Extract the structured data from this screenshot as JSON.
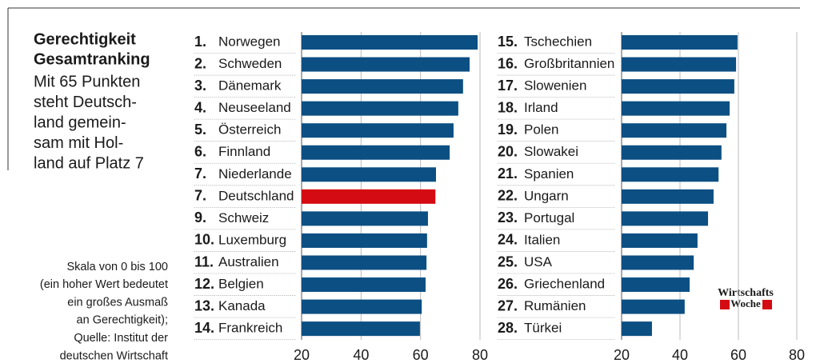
{
  "header": {
    "title": [
      "Gerechtigkeit",
      "Gesamtranking"
    ],
    "subtitle": [
      "Mit 65 Punkten",
      "steht Deutsch-",
      "land gemein-",
      "sam mit Hol-",
      "land auf Platz 7"
    ],
    "note": [
      "Skala von 0 bis 100",
      "(ein hoher Wert bedeutet",
      "ein großes Ausmaß",
      "an Gerechtigkeit);",
      "Quelle: Institut der",
      "deutschen Wirtschaft"
    ],
    "logo": [
      "Wirtschafts",
      "Woche"
    ]
  },
  "chart_data": [
    {
      "type": "bar",
      "orientation": "horizontal",
      "ranks": [
        "1.",
        "2.",
        "3.",
        "4.",
        "5.",
        "6.",
        "7.",
        "7.",
        "9.",
        "10.",
        "11.",
        "12.",
        "13.",
        "14."
      ],
      "categories": [
        "Norwegen",
        "Schweden",
        "Dänemark",
        "Neuseeland",
        "Österreich",
        "Finnland",
        "Niederlande",
        "Deutschland",
        "Schweiz",
        "Luxemburg",
        "Australien",
        "Belgien",
        "Kanada",
        "Frankreich"
      ],
      "values": [
        79.2,
        76.5,
        74.3,
        72.7,
        71.1,
        69.8,
        65.2,
        65,
        62.5,
        62.2,
        62,
        61.7,
        60.4,
        59.8
      ],
      "colors": [
        "#0b4f83",
        "#0b4f83",
        "#0b4f83",
        "#0b4f83",
        "#0b4f83",
        "#0b4f83",
        "#0b4f83",
        "#d40b12",
        "#0b4f83",
        "#0b4f83",
        "#0b4f83",
        "#0b4f83",
        "#0b4f83",
        "#0b4f83"
      ],
      "xlim": [
        20,
        80
      ],
      "xticks": [
        20,
        40,
        60,
        80
      ],
      "grid": true
    },
    {
      "type": "bar",
      "orientation": "horizontal",
      "ranks": [
        "15.",
        "16.",
        "17.",
        "18.",
        "19.",
        "20.",
        "21.",
        "22.",
        "23.",
        "24.",
        "25.",
        "26.",
        "27.",
        "28."
      ],
      "categories": [
        "Tschechien",
        "Großbritannien",
        "Slowenien",
        "Irland",
        "Polen",
        "Slowakei",
        "Spanien",
        "Ungarn",
        "Portugal",
        "Italien",
        "USA",
        "Griechenland",
        "Rumänien",
        "Türkei"
      ],
      "values": [
        59.7,
        59.2,
        58.6,
        57,
        55.9,
        54.2,
        53.2,
        51.5,
        49.6,
        46,
        44.7,
        43.3,
        41.6,
        30.4
      ],
      "colors": [
        "#0b4f83",
        "#0b4f83",
        "#0b4f83",
        "#0b4f83",
        "#0b4f83",
        "#0b4f83",
        "#0b4f83",
        "#0b4f83",
        "#0b4f83",
        "#0b4f83",
        "#0b4f83",
        "#0b4f83",
        "#0b4f83",
        "#0b4f83"
      ],
      "xlim": [
        20,
        80
      ],
      "xticks": [
        20,
        40,
        60,
        80
      ],
      "grid": true
    }
  ]
}
